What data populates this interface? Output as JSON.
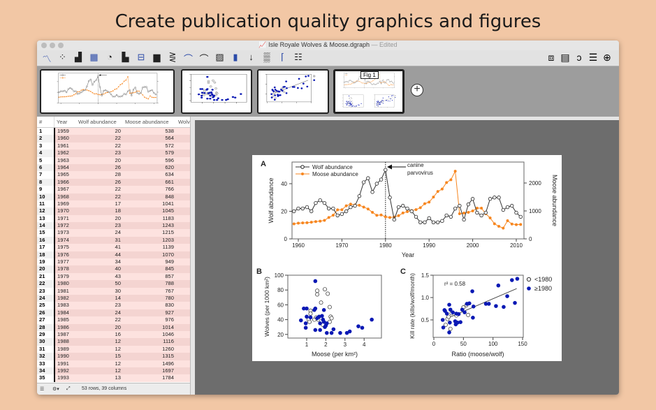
{
  "hero_title": "Create publication quality graphics and figures",
  "window": {
    "title": "Isle Royale Wolves & Moose.dgraph",
    "edited": "— Edited"
  },
  "toolbar_icons": [
    "line-chart-icon",
    "scatter-icon",
    "bar-chart-icon",
    "table-bar-icon",
    "pie-chart-icon",
    "step-chart-icon",
    "box-plot-icon",
    "histogram-icon",
    "lines-fan-icon",
    "curve-fit-icon",
    "curve-icon",
    "area-chart-icon",
    "color-bar-icon",
    "function-icon",
    "text-pattern-icon",
    "axis-frame-icon",
    "legend-icon"
  ],
  "right_toolbar_icons": [
    "align-icon",
    "layers-icon",
    "lasso-icon",
    "list-icon",
    "zoom-in-icon"
  ],
  "thumbnails": [
    {
      "name": "thumb-panel-a"
    },
    {
      "name": "thumb-panel-b"
    },
    {
      "name": "thumb-panel-c"
    },
    {
      "name": "thumb-fig1",
      "label": "Fig 1"
    }
  ],
  "table": {
    "headers": [
      "#",
      "Year",
      "Wolf abundance",
      "Moose abundance",
      "Wolve"
    ],
    "rows": [
      [
        1,
        1959,
        20,
        538
      ],
      [
        2,
        1960,
        22,
        564
      ],
      [
        3,
        1961,
        22,
        572
      ],
      [
        4,
        1962,
        23,
        579
      ],
      [
        5,
        1963,
        20,
        596
      ],
      [
        6,
        1964,
        26,
        620
      ],
      [
        7,
        1965,
        28,
        634
      ],
      [
        8,
        1966,
        26,
        661
      ],
      [
        9,
        1967,
        22,
        766
      ],
      [
        10,
        1968,
        22,
        848
      ],
      [
        11,
        1969,
        17,
        1041
      ],
      [
        12,
        1970,
        18,
        1045
      ],
      [
        13,
        1971,
        20,
        1183
      ],
      [
        14,
        1972,
        23,
        1243
      ],
      [
        15,
        1973,
        24,
        1215
      ],
      [
        16,
        1974,
        31,
        1203
      ],
      [
        17,
        1975,
        41,
        1139
      ],
      [
        18,
        1976,
        44,
        1070
      ],
      [
        19,
        1977,
        34,
        949
      ],
      [
        20,
        1978,
        40,
        845
      ],
      [
        21,
        1979,
        43,
        857
      ],
      [
        22,
        1980,
        50,
        788
      ],
      [
        23,
        1981,
        30,
        767
      ],
      [
        24,
        1982,
        14,
        780
      ],
      [
        25,
        1983,
        23,
        830
      ],
      [
        26,
        1984,
        24,
        927
      ],
      [
        27,
        1985,
        22,
        976
      ],
      [
        28,
        1986,
        20,
        1014
      ],
      [
        29,
        1987,
        16,
        1046
      ],
      [
        30,
        1988,
        12,
        1116
      ],
      [
        31,
        1989,
        12,
        1260
      ],
      [
        32,
        1990,
        15,
        1315
      ],
      [
        33,
        1991,
        12,
        1496
      ],
      [
        34,
        1992,
        12,
        1697
      ],
      [
        35,
        1993,
        13,
        1784
      ]
    ]
  },
  "status": {
    "text": "53 rows, 39 columns"
  },
  "chart_data": [
    {
      "panel": "A",
      "type": "line",
      "xlabel": "Year",
      "ylabel": "Wolf abundance",
      "y2label": "Moose abundance",
      "xlim": [
        1958,
        2012
      ],
      "ylim": [
        0,
        55
      ],
      "y2lim": [
        0,
        2750
      ],
      "xticks": [
        1960,
        1970,
        1980,
        1990,
        2000,
        2010
      ],
      "yticks": [
        0,
        20,
        40
      ],
      "y2ticks": [
        0,
        1000,
        2000
      ],
      "annotation": [
        "canine",
        "parvovirus"
      ],
      "annotation_x": 1980,
      "x": [
        1959,
        1960,
        1961,
        1962,
        1963,
        1964,
        1965,
        1966,
        1967,
        1968,
        1969,
        1970,
        1971,
        1972,
        1973,
        1974,
        1975,
        1976,
        1977,
        1978,
        1979,
        1980,
        1981,
        1982,
        1983,
        1984,
        1985,
        1986,
        1987,
        1988,
        1989,
        1990,
        1991,
        1992,
        1993,
        1994,
        1995,
        1996,
        1997,
        1998,
        1999,
        2000,
        2001,
        2002,
        2003,
        2004,
        2005,
        2006,
        2007,
        2008,
        2009,
        2010,
        2011
      ],
      "series": [
        {
          "name": "Wolf abundance",
          "axis": "left",
          "color": "#333333",
          "values": [
            20,
            22,
            22,
            23,
            20,
            26,
            28,
            26,
            22,
            22,
            17,
            18,
            20,
            23,
            24,
            31,
            41,
            44,
            34,
            40,
            43,
            50,
            30,
            14,
            23,
            24,
            22,
            20,
            16,
            12,
            12,
            15,
            12,
            12,
            13,
            17,
            16,
            22,
            24,
            14,
            25,
            29,
            19,
            17,
            19,
            29,
            30,
            30,
            21,
            23,
            24,
            19,
            16
          ]
        },
        {
          "name": "Moose abundance",
          "axis": "right",
          "color": "#f7861f",
          "values": [
            538,
            564,
            572,
            579,
            596,
            620,
            634,
            661,
            766,
            848,
            1041,
            1045,
            1183,
            1243,
            1215,
            1203,
            1139,
            1070,
            949,
            845,
            857,
            788,
            767,
            780,
            830,
            927,
            976,
            1014,
            1046,
            1116,
            1260,
            1315,
            1496,
            1697,
            1784,
            2017,
            2117,
            2422,
            900,
            925,
            950,
            1000,
            1100,
            1100,
            900,
            750,
            540,
            450,
            385,
            650,
            530,
            510,
            515
          ]
        }
      ]
    },
    {
      "panel": "B",
      "type": "scatter",
      "xlabel": "Moose (per km²)",
      "ylabel": "Wolves (per 1000 km²)",
      "xlim": [
        0.5,
        4.9
      ],
      "ylim": [
        15,
        100
      ],
      "xticks": [
        1,
        2,
        3,
        4
      ],
      "yticks": [
        20,
        40,
        60,
        80,
        100
      ],
      "series": [
        {
          "name": "<1980",
          "style": "open",
          "points": [
            [
              1.1,
              40
            ],
            [
              1.15,
              37
            ],
            [
              1.2,
              52
            ],
            [
              1.2,
              48
            ],
            [
              1.4,
              40
            ],
            [
              1.55,
              74
            ],
            [
              1.55,
              79
            ],
            [
              1.6,
              40
            ],
            [
              1.75,
              63
            ],
            [
              1.95,
              81
            ],
            [
              2.1,
              75
            ],
            [
              2.2,
              57
            ],
            [
              2.25,
              44
            ],
            [
              2.3,
              42
            ],
            [
              2.2,
              37
            ],
            [
              1.85,
              33
            ],
            [
              1.5,
              43
            ]
          ]
        },
        {
          "name": "≥1980",
          "style": "filled",
          "color": "#0a19b4",
          "points": [
            [
              0.7,
              39
            ],
            [
              0.85,
              55
            ],
            [
              1.0,
              55
            ],
            [
              0.95,
              35
            ],
            [
              0.95,
              29
            ],
            [
              1.0,
              44
            ],
            [
              1.2,
              43
            ],
            [
              1.4,
              53
            ],
            [
              1.45,
              55
            ],
            [
              1.45,
              92
            ],
            [
              1.45,
              26
            ],
            [
              1.55,
              42
            ],
            [
              1.65,
              44
            ],
            [
              1.7,
              35
            ],
            [
              1.7,
              26
            ],
            [
              1.8,
              45
            ],
            [
              1.85,
              40
            ],
            [
              1.9,
              37
            ],
            [
              1.9,
              53
            ],
            [
              1.95,
              30
            ],
            [
              2.0,
              32
            ],
            [
              2.05,
              35
            ],
            [
              2.05,
              22
            ],
            [
              2.3,
              22
            ],
            [
              2.4,
              27
            ],
            [
              2.75,
              22
            ],
            [
              3.1,
              22
            ],
            [
              3.25,
              24
            ],
            [
              3.7,
              31
            ],
            [
              3.9,
              29
            ],
            [
              4.4,
              40
            ]
          ]
        }
      ]
    },
    {
      "panel": "C",
      "type": "scatter",
      "xlabel": "Ratio (moose/wolf)",
      "ylabel": "Kill rate (kills/wolf/month)",
      "xlim": [
        0,
        152
      ],
      "ylim": [
        0.11,
        1.5
      ],
      "xticks": [
        0,
        50,
        100,
        150
      ],
      "yticks": [
        0.5,
        1.0,
        1.5
      ],
      "ytick_labels": [
        "0.5",
        "1.0",
        "1.5"
      ],
      "annotation": "r² = 0.58",
      "fit": [
        [
          20,
          0.52
        ],
        [
          140,
          1.2
        ]
      ],
      "series": [
        {
          "name": "<1980",
          "style": "open",
          "points": [
            [
              20,
              0.39
            ],
            [
              23,
              0.52
            ],
            [
              25,
              0.57
            ],
            [
              28,
              0.3
            ],
            [
              30,
              0.65
            ],
            [
              38,
              0.6
            ],
            [
              50,
              0.78
            ],
            [
              55,
              0.83
            ],
            [
              58,
              0.61
            ]
          ]
        },
        {
          "name": "≥1980",
          "style": "filled",
          "color": "#0a19b4",
          "points": [
            [
              15,
              0.5
            ],
            [
              16,
              0.33
            ],
            [
              18,
              0.72
            ],
            [
              19,
              0.7
            ],
            [
              22,
              0.64
            ],
            [
              26,
              0.84
            ],
            [
              27,
              0.44
            ],
            [
              28,
              0.73
            ],
            [
              26,
              0.22
            ],
            [
              32,
              0.67
            ],
            [
              36,
              0.47
            ],
            [
              37,
              0.4
            ],
            [
              38,
              0.64
            ],
            [
              40,
              0.44
            ],
            [
              42,
              0.63
            ],
            [
              45,
              0.45
            ],
            [
              48,
              0.73
            ],
            [
              52,
              0.67
            ],
            [
              56,
              0.86
            ],
            [
              60,
              0.87
            ],
            [
              65,
              1.14
            ],
            [
              66,
              0.55
            ],
            [
              67,
              0.8
            ],
            [
              88,
              0.86
            ],
            [
              93,
              0.86
            ],
            [
              105,
              0.81
            ],
            [
              109,
              1.27
            ],
            [
              118,
              0.79
            ],
            [
              124,
              1.03
            ],
            [
              132,
              1.39
            ],
            [
              137,
              0.88
            ],
            [
              141,
              1.42
            ]
          ]
        }
      ]
    }
  ]
}
